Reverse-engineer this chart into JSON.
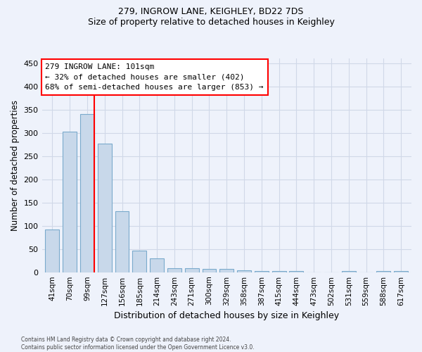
{
  "title": "279, INGROW LANE, KEIGHLEY, BD22 7DS",
  "subtitle": "Size of property relative to detached houses in Keighley",
  "xlabel": "Distribution of detached houses by size in Keighley",
  "ylabel": "Number of detached properties",
  "bar_color": "#c8d8ea",
  "bar_edge_color": "#7aaacc",
  "categories": [
    "41sqm",
    "70sqm",
    "99sqm",
    "127sqm",
    "156sqm",
    "185sqm",
    "214sqm",
    "243sqm",
    "271sqm",
    "300sqm",
    "329sqm",
    "358sqm",
    "387sqm",
    "415sqm",
    "444sqm",
    "473sqm",
    "502sqm",
    "531sqm",
    "559sqm",
    "588sqm",
    "617sqm"
  ],
  "values": [
    92,
    302,
    340,
    276,
    131,
    46,
    30,
    9,
    9,
    7,
    7,
    4,
    2,
    2,
    2,
    0,
    0,
    3,
    0,
    2,
    3
  ],
  "ylim": [
    0,
    460
  ],
  "yticks": [
    0,
    50,
    100,
    150,
    200,
    250,
    300,
    350,
    400,
    450
  ],
  "vline_x_index": 2,
  "annotation_line1": "279 INGROW LANE: 101sqm",
  "annotation_line2": "← 32% of detached houses are smaller (402)",
  "annotation_line3": "68% of semi-detached houses are larger (853) →",
  "annotation_box_color": "white",
  "annotation_box_edge_color": "red",
  "vline_color": "red",
  "footer_line1": "Contains HM Land Registry data © Crown copyright and database right 2024.",
  "footer_line2": "Contains public sector information licensed under the Open Government Licence v3.0.",
  "background_color": "#eef2fb",
  "grid_color": "#d0d8e8"
}
